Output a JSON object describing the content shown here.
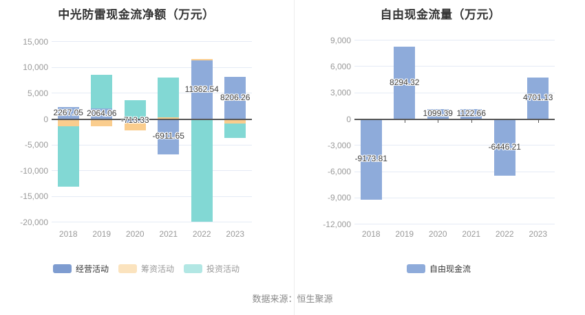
{
  "chart_data": [
    {
      "type": "bar",
      "stacked": true,
      "title": "中光防雷现金流净额（万元）",
      "categories": [
        "2018",
        "2019",
        "2020",
        "2021",
        "2022",
        "2023"
      ],
      "series": [
        {
          "name": "经营活动",
          "color": "#8EABDA",
          "values": [
            2267.05,
            2064.06,
            -713.33,
            -6911.65,
            11362.54,
            8206.26
          ]
        },
        {
          "name": "筹资活动",
          "color": "#FACD8E",
          "values": [
            -1400,
            -1400,
            -1480,
            350,
            260,
            -850
          ]
        },
        {
          "name": "投资活动",
          "color": "#82D8D4",
          "values": [
            -11700,
            6500,
            3700,
            7650,
            -19900,
            -2800
          ]
        }
      ],
      "bar_labels": [
        "2267.05",
        "2064.06",
        "-713.33",
        "-6911.65",
        "11362.54",
        "8206.26"
      ],
      "label_series_index": 0,
      "ylim": [
        -20000,
        15000
      ],
      "y_tick_values": [
        15000,
        10000,
        5000,
        0,
        -5000,
        -10000,
        -15000,
        -20000
      ],
      "y_tick_labels": [
        "15,000",
        "10,000",
        "5,000",
        "0",
        "-5,000",
        "-10,000",
        "-15,000",
        "-20,000"
      ],
      "grid": "on",
      "legend_position": "bottom",
      "legend": [
        {
          "label": "经营活动",
          "swatch": "#7E9CD0",
          "text_color": "#333333"
        },
        {
          "label": "筹资活动",
          "swatch": "#FBE3BE",
          "text_color": "#999999"
        },
        {
          "label": "投资活动",
          "swatch": "#B2E7E4",
          "text_color": "#999999"
        }
      ]
    },
    {
      "type": "bar",
      "stacked": false,
      "title": "自由现金流量（万元）",
      "categories": [
        "2018",
        "2019",
        "2020",
        "2021",
        "2022",
        "2023"
      ],
      "series": [
        {
          "name": "自由现金流",
          "color": "#8EABDA",
          "values": [
            -9173.81,
            8294.32,
            1099.39,
            1122.66,
            -6446.21,
            4701.13
          ]
        }
      ],
      "bar_labels": [
        "-9173.81",
        "8294.32",
        "1099.39",
        "1122.66",
        "-6446.21",
        "4701.13"
      ],
      "label_series_index": 0,
      "ylim": [
        -12000,
        9000
      ],
      "y_tick_values": [
        9000,
        6000,
        3000,
        0,
        -3000,
        -6000,
        -9000,
        -12000
      ],
      "y_tick_labels": [
        "9,000",
        "6,000",
        "3,000",
        "0",
        "-3,000",
        "-6,000",
        "-9,000",
        "-12,000"
      ],
      "grid": "on",
      "legend_position": "bottom",
      "legend": [
        {
          "label": "自由现金流",
          "swatch": "#8EABDA",
          "text_color": "#333333"
        }
      ]
    }
  ],
  "footer": {
    "source": "数据来源：恒生聚源"
  },
  "colors": {
    "grid_line": "#E4EAF5",
    "zero_axis": "#555555",
    "axis_label": "#999999",
    "bar_label": "#3D3D3D",
    "title": "#333333",
    "divider": "#EDEDED",
    "background": "#FFFFFF"
  }
}
